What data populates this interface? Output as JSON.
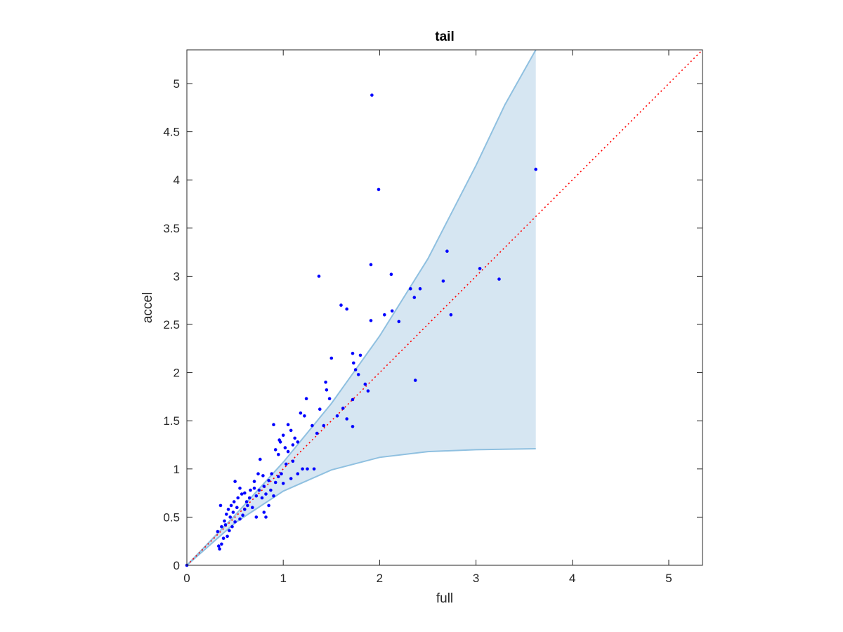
{
  "chart_data": {
    "type": "scatter",
    "title": "tail",
    "xlabel": "full",
    "ylabel": "accel",
    "xlim": [
      0,
      5.35
    ],
    "ylim": [
      0,
      5.35
    ],
    "xticks": [
      "0",
      "1",
      "2",
      "3",
      "4",
      "5"
    ],
    "yticks": [
      "0",
      "0.5",
      "1",
      "1.5",
      "2",
      "2.5",
      "3",
      "3.5",
      "4",
      "4.5",
      "5"
    ],
    "grid": false,
    "legend": "none",
    "colors": {
      "points": "#0000ff",
      "band_fill": "#d6e6f2",
      "band_edge": "#8fc0e0",
      "reference_line": "#ff0000",
      "axes": "#262626"
    },
    "reference_line": {
      "style": "dotted",
      "x": [
        0,
        5.35
      ],
      "y": [
        0,
        5.35
      ]
    },
    "band": {
      "upper": [
        [
          0,
          0
        ],
        [
          0.5,
          0.52
        ],
        [
          1.0,
          1.07
        ],
        [
          1.5,
          1.68
        ],
        [
          2.0,
          2.38
        ],
        [
          2.5,
          3.18
        ],
        [
          3.0,
          4.15
        ],
        [
          3.3,
          4.78
        ],
        [
          3.62,
          5.35
        ]
      ],
      "lower": [
        [
          0,
          0
        ],
        [
          0.5,
          0.44
        ],
        [
          1.0,
          0.77
        ],
        [
          1.5,
          0.99
        ],
        [
          2.0,
          1.12
        ],
        [
          2.5,
          1.18
        ],
        [
          3.0,
          1.2
        ],
        [
          3.62,
          1.21
        ]
      ]
    },
    "points": [
      [
        1.92,
        4.88
      ],
      [
        1.99,
        3.9
      ],
      [
        3.62,
        4.11
      ],
      [
        2.7,
        3.26
      ],
      [
        1.91,
        3.12
      ],
      [
        3.04,
        3.08
      ],
      [
        1.37,
        3.0
      ],
      [
        2.12,
        3.02
      ],
      [
        3.24,
        2.97
      ],
      [
        2.66,
        2.95
      ],
      [
        2.32,
        2.87
      ],
      [
        2.42,
        2.87
      ],
      [
        2.36,
        2.78
      ],
      [
        1.6,
        2.7
      ],
      [
        1.66,
        2.66
      ],
      [
        2.13,
        2.64
      ],
      [
        2.05,
        2.6
      ],
      [
        2.74,
        2.6
      ],
      [
        1.91,
        2.54
      ],
      [
        2.2,
        2.53
      ],
      [
        2.37,
        1.92
      ],
      [
        1.5,
        2.15
      ],
      [
        1.72,
        2.2
      ],
      [
        1.8,
        2.18
      ],
      [
        1.73,
        2.1
      ],
      [
        1.75,
        2.03
      ],
      [
        1.78,
        1.98
      ],
      [
        1.85,
        1.88
      ],
      [
        1.88,
        1.81
      ],
      [
        1.44,
        1.9
      ],
      [
        1.45,
        1.82
      ],
      [
        1.72,
        1.72
      ],
      [
        1.48,
        1.73
      ],
      [
        1.62,
        1.63
      ],
      [
        1.56,
        1.55
      ],
      [
        1.66,
        1.52
      ],
      [
        1.72,
        1.44
      ],
      [
        1.24,
        1.73
      ],
      [
        1.22,
        1.55
      ],
      [
        1.38,
        1.62
      ],
      [
        1.3,
        1.45
      ],
      [
        0.9,
        1.46
      ],
      [
        1.05,
        1.46
      ],
      [
        1.18,
        1.58
      ],
      [
        1.35,
        1.37
      ],
      [
        1.42,
        1.45
      ],
      [
        1.32,
        1.0
      ],
      [
        1.25,
        1.0
      ],
      [
        1.2,
        1.0
      ],
      [
        1.15,
        0.95
      ],
      [
        1.08,
        0.9
      ],
      [
        1.0,
        0.85
      ],
      [
        0.96,
        1.3
      ],
      [
        1.0,
        1.35
      ],
      [
        1.02,
        1.22
      ],
      [
        1.05,
        1.18
      ],
      [
        1.1,
        1.25
      ],
      [
        1.12,
        1.32
      ],
      [
        1.15,
        1.28
      ],
      [
        0.92,
        1.2
      ],
      [
        0.97,
        1.28
      ],
      [
        1.08,
        1.4
      ],
      [
        0.95,
        1.15
      ],
      [
        0.7,
        0.87
      ],
      [
        0.74,
        0.95
      ],
      [
        0.79,
        0.93
      ],
      [
        0.82,
        0.5
      ],
      [
        0.8,
        0.55
      ],
      [
        0.85,
        0.62
      ],
      [
        0.72,
        0.5
      ],
      [
        0.76,
        1.1
      ],
      [
        0.5,
        0.87
      ],
      [
        0.55,
        0.8
      ],
      [
        0.6,
        0.75
      ],
      [
        0.35,
        0.62
      ],
      [
        0.33,
        0.2
      ],
      [
        0.36,
        0.22
      ],
      [
        0.34,
        0.17
      ],
      [
        0.32,
        0.35
      ],
      [
        0.38,
        0.28
      ],
      [
        0.4,
        0.42
      ],
      [
        0.45,
        0.5
      ],
      [
        0.48,
        0.55
      ],
      [
        0.52,
        0.6
      ],
      [
        0.55,
        0.48
      ],
      [
        0.58,
        0.52
      ],
      [
        0.62,
        0.66
      ],
      [
        0.65,
        0.7
      ],
      [
        0.68,
        0.6
      ],
      [
        0.72,
        0.72
      ],
      [
        0.75,
        0.78
      ],
      [
        0.8,
        0.82
      ],
      [
        0.85,
        0.88
      ],
      [
        0.88,
        0.95
      ],
      [
        0.92,
        0.86
      ],
      [
        0.95,
        0.92
      ],
      [
        0.42,
        0.3
      ],
      [
        0.44,
        0.36
      ],
      [
        0.47,
        0.4
      ],
      [
        0.5,
        0.45
      ],
      [
        0.36,
        0.4
      ],
      [
        0.39,
        0.46
      ],
      [
        0.41,
        0.53
      ],
      [
        0.43,
        0.58
      ],
      [
        0.46,
        0.62
      ],
      [
        0.49,
        0.66
      ],
      [
        0.53,
        0.7
      ],
      [
        0.57,
        0.74
      ],
      [
        0.6,
        0.58
      ],
      [
        0.63,
        0.62
      ],
      [
        0.66,
        0.78
      ],
      [
        0.7,
        0.8
      ],
      [
        0.78,
        0.7
      ],
      [
        0.82,
        0.74
      ],
      [
        0.87,
        0.78
      ],
      [
        0.9,
        0.72
      ],
      [
        0.98,
        0.95
      ],
      [
        1.03,
        1.05
      ],
      [
        1.1,
        1.08
      ],
      [
        0.0,
        0.0
      ]
    ]
  }
}
